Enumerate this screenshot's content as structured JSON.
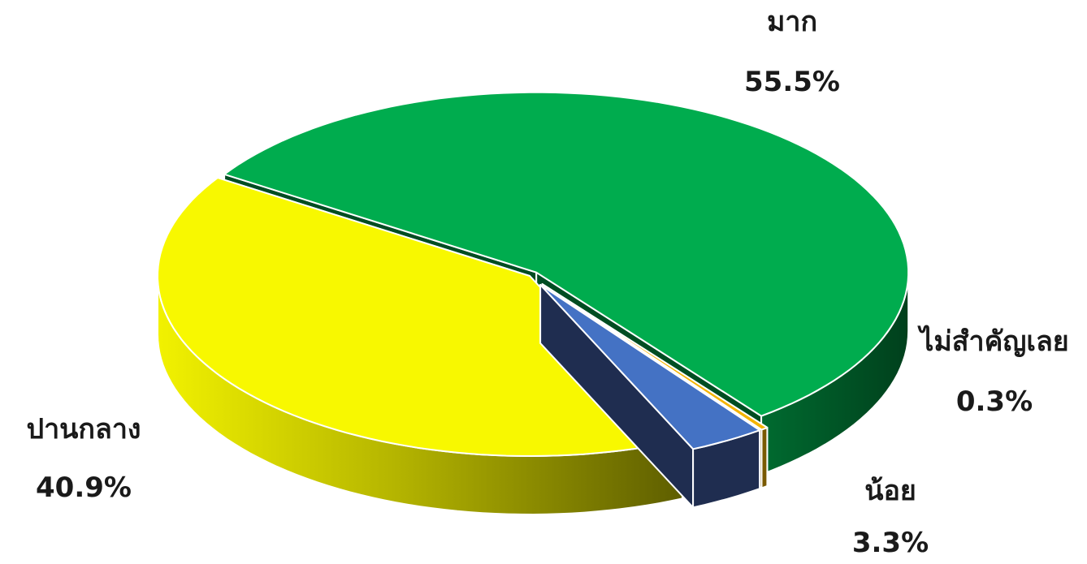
{
  "chart_data": {
    "type": "pie",
    "style": "3d-exploded",
    "slices": [
      {
        "label": "มาก",
        "value": 55.5,
        "value_label": "55.5%",
        "color": "#00AC4E",
        "side_color": "#004D22"
      },
      {
        "label": "ไม่สำคัญเลย",
        "value": 0.3,
        "value_label": "0.3%",
        "color": "#F5B400",
        "side_color": "#7A5A00"
      },
      {
        "label": "น้อย",
        "value": 3.3,
        "value_label": "3.3%",
        "color": "#4472C4",
        "side_color": "#1F2D50"
      },
      {
        "label": "ปานกลาง",
        "value": 40.9,
        "value_label": "40.9%",
        "color": "#F8F800",
        "side_color": "#6E6E00"
      }
    ]
  }
}
